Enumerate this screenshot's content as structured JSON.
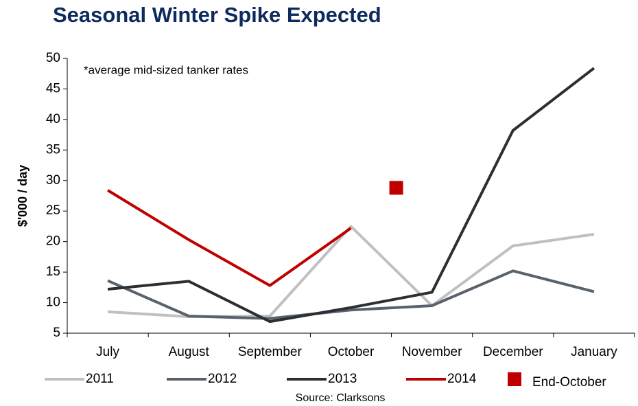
{
  "chart_data": {
    "type": "line",
    "title": "Seasonal Winter Spike Expected",
    "annotation": "*average mid-sized tanker rates",
    "ylabel": "$'000 / day",
    "source": "Source: Clarksons",
    "categories": [
      "July",
      "August",
      "September",
      "October",
      "November",
      "December",
      "January"
    ],
    "series": [
      {
        "name": "2011",
        "color": "#c0c0c0",
        "values": [
          8.5,
          7.7,
          7.8,
          22.5,
          9.5,
          19.3,
          21.2
        ]
      },
      {
        "name": "2012",
        "color": "#59626c",
        "values": [
          13.6,
          7.8,
          7.4,
          8.8,
          9.5,
          15.2,
          11.8
        ]
      },
      {
        "name": "2013",
        "color": "#2b2f33",
        "values": [
          12.2,
          13.5,
          6.9,
          9.2,
          11.7,
          38.2,
          48.4
        ]
      },
      {
        "name": "2014",
        "color": "#c00000",
        "values": [
          28.4,
          20.3,
          12.8,
          22.2,
          null,
          null,
          null
        ]
      }
    ],
    "marker": {
      "name": "End-October",
      "color": "#c00000",
      "value": 28.8
    },
    "ylim": [
      5,
      50
    ],
    "yticks": [
      5,
      10,
      15,
      20,
      25,
      30,
      35,
      40,
      45,
      50
    ]
  }
}
